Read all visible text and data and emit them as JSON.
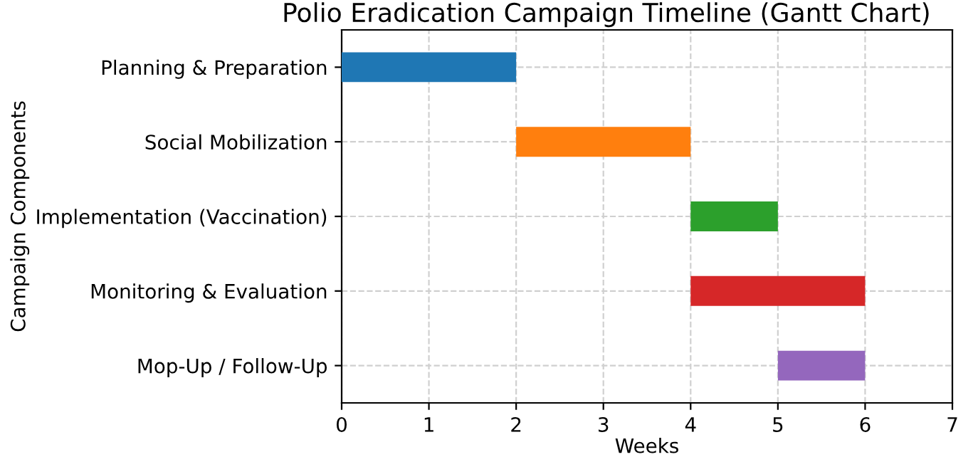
{
  "chart_data": {
    "type": "bar",
    "orientation": "horizontal",
    "title": "Polio Eradication Campaign Timeline (Gantt Chart)",
    "xlabel": "Weeks",
    "ylabel": "Campaign Components",
    "categories": [
      "Planning & Preparation",
      "Social Mobilization",
      "Implementation (Vaccination)",
      "Monitoring & Evaluation",
      "Mop-Up / Follow-Up"
    ],
    "base": [
      0,
      2,
      4,
      4,
      5
    ],
    "values": [
      2,
      2,
      1,
      2,
      1
    ],
    "colors": [
      "#1f77b4",
      "#ff7f0e",
      "#2ca02c",
      "#d62728",
      "#9467bd"
    ],
    "xlim": [
      0,
      7
    ],
    "xticks": [
      0,
      1,
      2,
      3,
      4,
      5,
      6,
      7
    ],
    "grid": true,
    "line_style": "dashed"
  }
}
